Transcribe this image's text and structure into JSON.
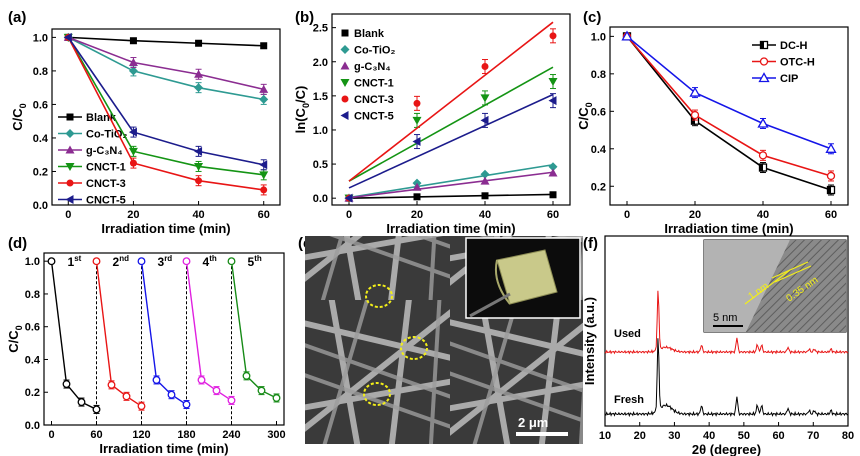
{
  "chart_data": [
    {
      "panel": "(a)",
      "type": "line",
      "xlabel": "Irradiation time (min)",
      "ylabel": "C/C0",
      "xlim": [
        -5,
        65
      ],
      "ylim": [
        0,
        1.05
      ],
      "xticks": [
        0,
        20,
        40,
        60
      ],
      "yticks": [
        0.0,
        0.2,
        0.4,
        0.6,
        0.8,
        1.0
      ],
      "x": [
        0,
        20,
        40,
        60
      ],
      "legend": "left",
      "series": [
        {
          "name": "Blank",
          "values": [
            1.0,
            0.98,
            0.965,
            0.95
          ],
          "color": "#000000",
          "marker": "square"
        },
        {
          "name": "Co-TiO₂",
          "values": [
            1.0,
            0.8,
            0.7,
            0.63
          ],
          "color": "#2e9a92",
          "marker": "diamond"
        },
        {
          "name": "g-C₃N₄",
          "values": [
            1.0,
            0.85,
            0.78,
            0.69
          ],
          "color": "#8b2d91",
          "marker": "triangle-up"
        },
        {
          "name": "CNCT-1",
          "values": [
            1.0,
            0.32,
            0.23,
            0.18
          ],
          "color": "#149414",
          "marker": "triangle-down"
        },
        {
          "name": "CNCT-3",
          "values": [
            1.0,
            0.25,
            0.145,
            0.09
          ],
          "color": "#e81515",
          "marker": "circle"
        },
        {
          "name": "CNCT-5",
          "values": [
            1.0,
            0.435,
            0.32,
            0.24
          ],
          "color": "#1c1c8c",
          "marker": "triangle-left"
        }
      ]
    },
    {
      "panel": "(b)",
      "type": "scatter",
      "xlabel": "Irradiation time (min)",
      "ylabel": "ln(C0/C)",
      "xlim": [
        -5,
        65
      ],
      "ylim": [
        -0.1,
        2.7
      ],
      "xticks": [
        0,
        20,
        40,
        60
      ],
      "yticks": [
        0.0,
        0.5,
        1.0,
        1.5,
        2.0,
        2.5
      ],
      "x": [
        0,
        20,
        40,
        60
      ],
      "legend": "top-left",
      "series": [
        {
          "name": "Blank",
          "values": [
            0,
            0.02,
            0.035,
            0.05
          ],
          "fit": [
            0,
            0.055
          ],
          "color": "#000000",
          "marker": "square"
        },
        {
          "name": "Co-TiO₂",
          "values": [
            0,
            0.22,
            0.35,
            0.46
          ],
          "fit": [
            0.01,
            0.49
          ],
          "color": "#2e9a92",
          "marker": "diamond"
        },
        {
          "name": "g-C₃N₄",
          "values": [
            0,
            0.16,
            0.25,
            0.37
          ],
          "fit": [
            0.005,
            0.38
          ],
          "color": "#8b2d91",
          "marker": "triangle-up"
        },
        {
          "name": "CNCT-1",
          "values": [
            0,
            1.14,
            1.47,
            1.71
          ],
          "fit": [
            0.25,
            1.92
          ],
          "color": "#149414",
          "marker": "triangle-down"
        },
        {
          "name": "CNCT-3",
          "values": [
            0,
            1.39,
            1.93,
            2.38
          ],
          "fit": [
            0.25,
            2.58
          ],
          "color": "#e81515",
          "marker": "circle"
        },
        {
          "name": "CNCT-5",
          "values": [
            0,
            0.83,
            1.14,
            1.43
          ],
          "fit": [
            0.15,
            1.52
          ],
          "color": "#1c1c8c",
          "marker": "triangle-left"
        }
      ]
    },
    {
      "panel": "(c)",
      "type": "line",
      "xlabel": "Irradiation time (min)",
      "ylabel": "C/C0",
      "xlim": [
        -5,
        65
      ],
      "ylim": [
        0.1,
        1.05
      ],
      "xticks": [
        0,
        20,
        40,
        60
      ],
      "yticks": [
        0.2,
        0.4,
        0.6,
        0.8,
        1.0
      ],
      "x": [
        0,
        20,
        40,
        60
      ],
      "legend": "top-right",
      "series": [
        {
          "name": "DC-H",
          "values": [
            1.0,
            0.55,
            0.3,
            0.18
          ],
          "color": "#000000",
          "marker": "half-square"
        },
        {
          "name": "OTC-H",
          "values": [
            1.0,
            0.58,
            0.365,
            0.255
          ],
          "color": "#e81515",
          "marker": "circle-open"
        },
        {
          "name": "CIP",
          "values": [
            1.0,
            0.7,
            0.535,
            0.4
          ],
          "color": "#1515e8",
          "marker": "triangle-open"
        }
      ]
    },
    {
      "panel": "(d)",
      "type": "line",
      "xlabel": "Irradiation time (min)",
      "ylabel": "C/C0",
      "xlim": [
        -10,
        310
      ],
      "ylim": [
        0,
        1.05
      ],
      "xticks": [
        0,
        60,
        120,
        180,
        240,
        300
      ],
      "yticks": [
        0.0,
        0.2,
        0.4,
        0.6,
        0.8,
        1.0
      ],
      "cycle_dividers": [
        60,
        120,
        180,
        240
      ],
      "cycle_labels": [
        {
          "num": "1",
          "sup": "st"
        },
        {
          "num": "2",
          "sup": "nd"
        },
        {
          "num": "3",
          "sup": "rd"
        },
        {
          "num": "4",
          "sup": "th"
        },
        {
          "num": "5",
          "sup": "th"
        }
      ],
      "series": [
        {
          "name": "1st",
          "x": [
            0,
            20,
            40,
            60
          ],
          "values": [
            1.0,
            0.25,
            0.14,
            0.095
          ],
          "color": "#000000"
        },
        {
          "name": "2nd",
          "x": [
            60,
            80,
            100,
            120
          ],
          "values": [
            1.0,
            0.245,
            0.175,
            0.115
          ],
          "color": "#e81515"
        },
        {
          "name": "3rd",
          "x": [
            120,
            140,
            160,
            180
          ],
          "values": [
            1.0,
            0.275,
            0.185,
            0.125
          ],
          "color": "#1515e8"
        },
        {
          "name": "4th",
          "x": [
            180,
            200,
            220,
            240
          ],
          "values": [
            1.0,
            0.275,
            0.21,
            0.15
          ],
          "color": "#e020e0"
        },
        {
          "name": "5th",
          "x": [
            240,
            260,
            280,
            300
          ],
          "values": [
            1.0,
            0.3,
            0.21,
            0.165
          ],
          "color": "#168a16"
        }
      ]
    },
    {
      "panel": "(f)",
      "type": "line",
      "xlabel": "2θ (degree)",
      "ylabel": "Intensity (a.u.)",
      "xlim": [
        10,
        80
      ],
      "xticks": [
        10,
        20,
        30,
        40,
        50,
        60,
        70,
        80
      ],
      "series": [
        {
          "name": "Used",
          "color": "#e81515"
        },
        {
          "name": "Fresh",
          "color": "#000000"
        }
      ],
      "peaks_2theta": [
        25.3,
        37.8,
        48.0,
        53.9,
        55.1,
        62.7,
        68.8,
        70.3,
        75.1
      ]
    }
  ],
  "panel_labels": {
    "a": "(a)",
    "b": "(b)",
    "c": "(c)",
    "d": "(d)",
    "e": "(e)",
    "f": "(f)"
  },
  "sem": {
    "scale_bar": "2 μm"
  },
  "hrtem": {
    "scale_bar": "5 nm",
    "annot1": "1 nm",
    "annot2": "0.35 nm"
  }
}
